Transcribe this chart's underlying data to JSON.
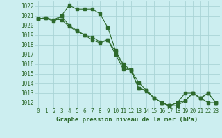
{
  "title": "Graphe pression niveau de la mer (hPa)",
  "background_color": "#cceef0",
  "grid_color": "#aad4d6",
  "line_color": "#2d6a2d",
  "xlim": [
    -0.5,
    23.5
  ],
  "ylim": [
    1011.5,
    1022.5
  ],
  "yticks": [
    1012,
    1013,
    1014,
    1015,
    1016,
    1017,
    1018,
    1019,
    1020,
    1021,
    1022
  ],
  "xticks": [
    0,
    1,
    2,
    3,
    4,
    5,
    6,
    7,
    8,
    9,
    10,
    11,
    12,
    13,
    14,
    15,
    16,
    17,
    18,
    19,
    20,
    21,
    22,
    23
  ],
  "series1": {
    "x": [
      0,
      1,
      2,
      3,
      4,
      5,
      6,
      7,
      8,
      9,
      10,
      11,
      12,
      13,
      14,
      15,
      16,
      17,
      18,
      19,
      20,
      21,
      22,
      23
    ],
    "y": [
      1020.7,
      1020.8,
      1020.6,
      1021.0,
      1022.1,
      1021.7,
      1021.7,
      1021.7,
      1021.2,
      1019.8,
      1017.4,
      1016.0,
      1015.4,
      1014.1,
      1013.3,
      1012.5,
      1012.0,
      1011.7,
      1012.0,
      1013.0,
      1013.0,
      1012.5,
      1012.0,
      1012.0
    ]
  },
  "series2": {
    "x": [
      0,
      1,
      2,
      3,
      4,
      5,
      6,
      7,
      8,
      9,
      10,
      11,
      12,
      13,
      14,
      15,
      16,
      17,
      18,
      19,
      20,
      21,
      22,
      23
    ],
    "y": [
      1020.7,
      1020.8,
      1020.4,
      1021.0,
      1020.0,
      1019.5,
      1019.0,
      1018.5,
      1018.2,
      1018.5,
      1017.0,
      1015.5,
      1015.4,
      1013.5,
      1013.3,
      1012.5,
      1012.0,
      1011.7,
      1012.0,
      1012.2,
      1013.0,
      1012.5,
      1013.0,
      1012.0
    ]
  },
  "series3": {
    "x": [
      0,
      3,
      4,
      5,
      6,
      7,
      8,
      9,
      10,
      11,
      12,
      13,
      14,
      15,
      16,
      17,
      18,
      19,
      20,
      21,
      22,
      23
    ],
    "y": [
      1020.7,
      1020.6,
      1019.9,
      1019.4,
      1019.0,
      1018.8,
      1018.3,
      1018.5,
      1017.3,
      1015.8,
      1015.3,
      1013.5,
      1013.2,
      1012.5,
      1012.0,
      1011.7,
      1011.7,
      1012.2,
      1013.0,
      1012.5,
      1013.0,
      1012.0
    ]
  },
  "ylabel_fontsize": 5.5,
  "xlabel_fontsize": 5.5,
  "title_fontsize": 6.5,
  "marker_size": 2.5,
  "line_width": 0.8
}
